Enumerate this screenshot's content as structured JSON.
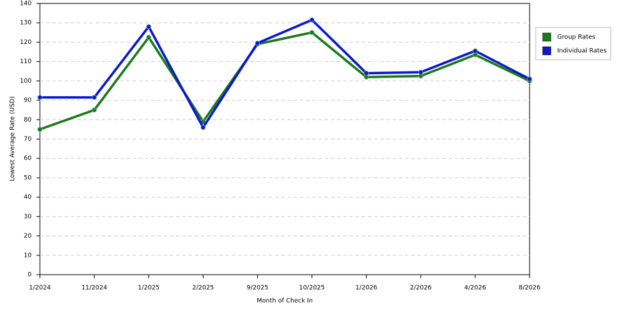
{
  "chart_data": {
    "type": "line",
    "x_label": "Month of Check In",
    "y_label": "Lowest Average Rate (USD)",
    "categories": [
      "1/2024",
      "11/2024",
      "1/2025",
      "2/2025",
      "9/2025",
      "10/2025",
      "1/2026",
      "2/2026",
      "4/2026",
      "8/2026"
    ],
    "series": [
      {
        "name": "Group Rates",
        "color": "#1a7a1a",
        "values": [
          75,
          85,
          122.5,
          79,
          119,
          125,
          102,
          102.5,
          113.5,
          100
        ]
      },
      {
        "name": "Individual Rates",
        "color": "#0a18d0",
        "values": [
          91.5,
          91.5,
          128,
          76,
          119.5,
          131.5,
          104,
          104.5,
          115.5,
          101
        ]
      }
    ],
    "ylim": [
      0,
      140
    ],
    "yticks": [
      0,
      10,
      20,
      30,
      40,
      50,
      60,
      70,
      80,
      90,
      100,
      110,
      120,
      130,
      140
    ],
    "grid": true,
    "legend": "right"
  }
}
